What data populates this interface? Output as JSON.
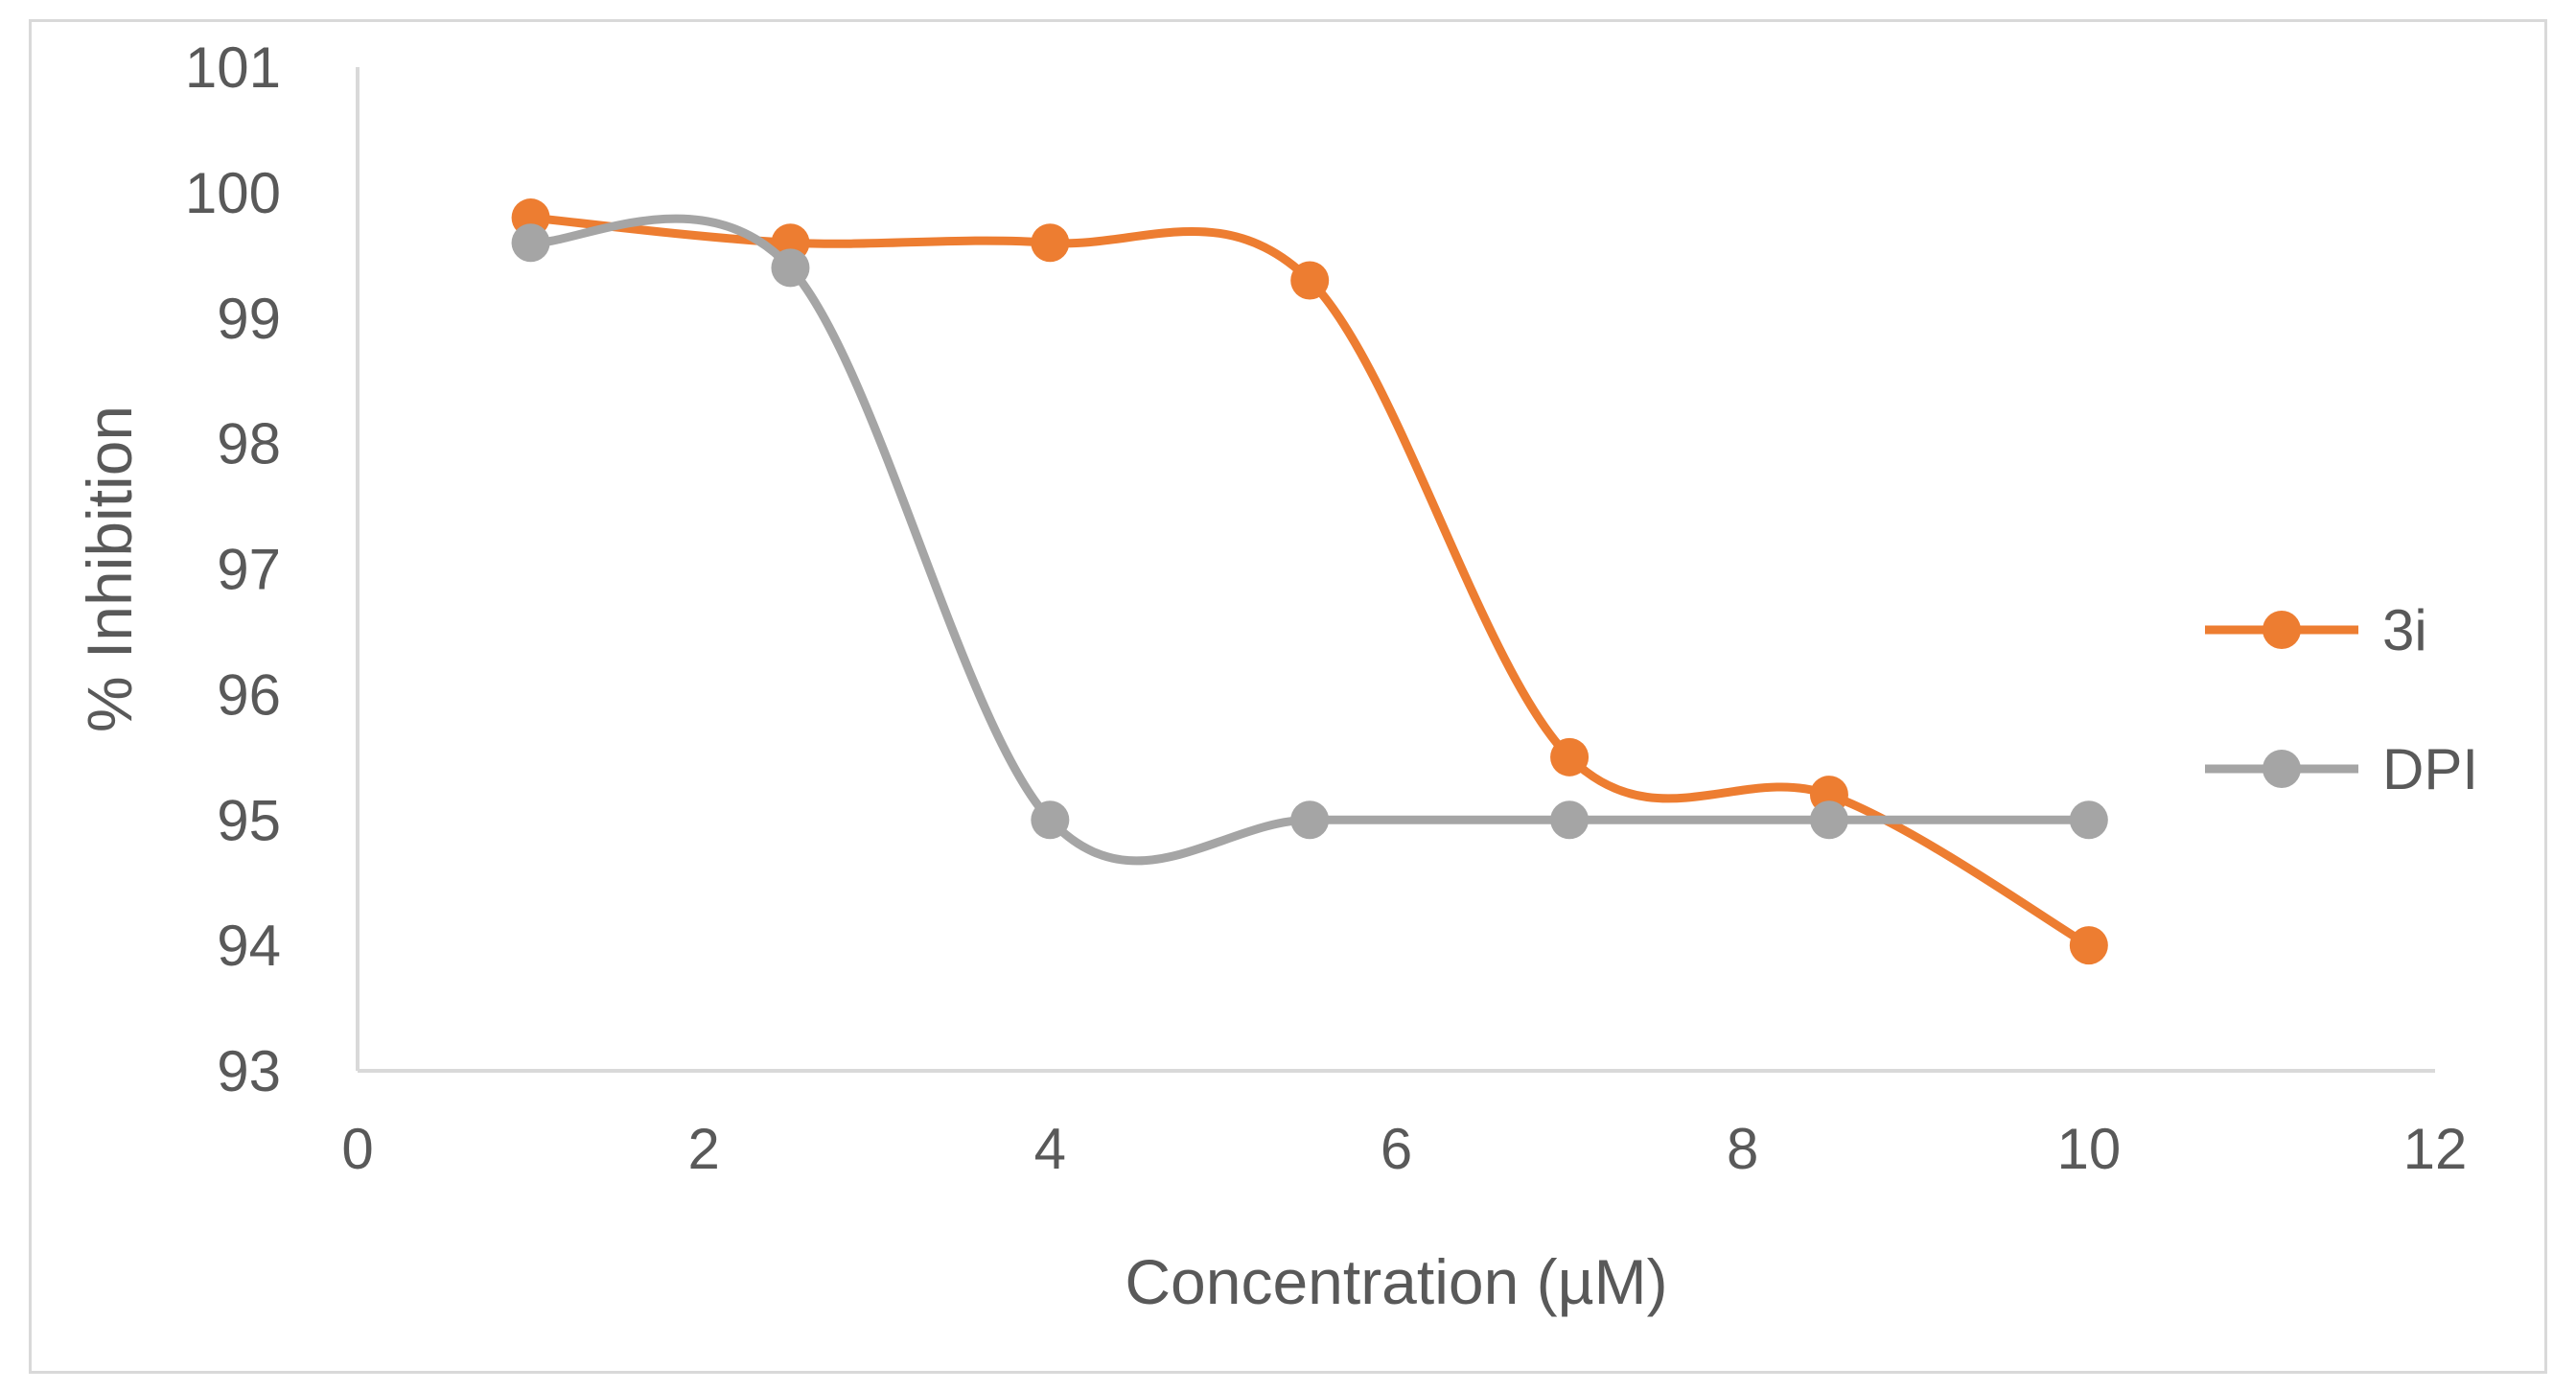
{
  "chart_data": {
    "type": "line",
    "smooth": true,
    "title": "",
    "xlabel": "Concentration (µM)",
    "ylabel": "% Inhibition",
    "xlim": [
      0,
      12
    ],
    "ylim": [
      93,
      101
    ],
    "xticks": [
      0,
      2,
      4,
      6,
      8,
      10,
      12
    ],
    "yticks": [
      93,
      94,
      95,
      96,
      97,
      98,
      99,
      100,
      101
    ],
    "x": [
      1,
      2.5,
      4,
      5.5,
      7,
      8.5,
      10
    ],
    "series": [
      {
        "name": "3i",
        "color": "#ED7D31",
        "values": [
          99.8,
          99.6,
          99.6,
          99.3,
          95.5,
          95.2,
          94.0
        ]
      },
      {
        "name": "DPI",
        "color": "#A5A5A5",
        "values": [
          99.6,
          99.4,
          95.0,
          95.0,
          95.0,
          95.0,
          95.0
        ]
      }
    ],
    "legend_position": "right",
    "grid": false
  },
  "colors": {
    "axis": "#d9d9d9",
    "text": "#595959",
    "frame": "#d9d9d9"
  }
}
